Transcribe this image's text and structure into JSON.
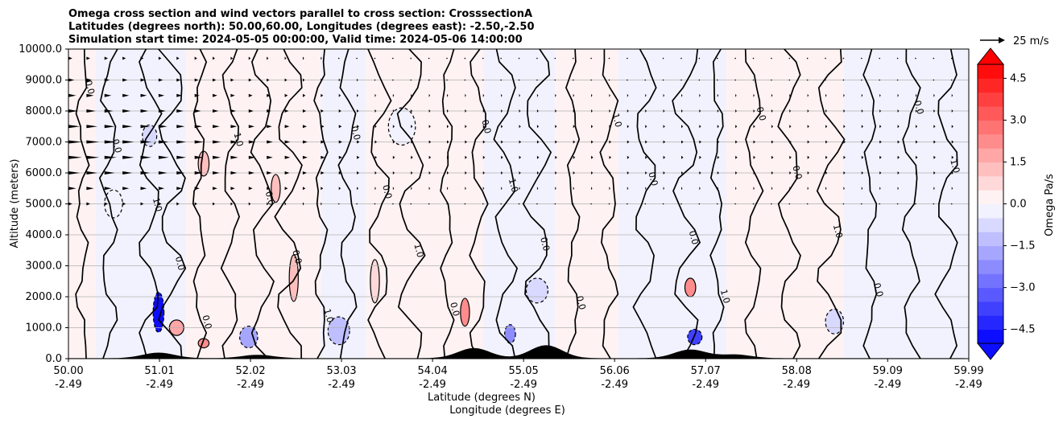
{
  "chart_data": {
    "type": "contour",
    "title_lines": [
      "Omega cross section and wind vectors parallel to cross section: CrosssectionA",
      "Latitudes (degrees north): 50.00,60.00, Longitudes (degrees east): -2.50,-2.50",
      "Simulation start time: 2024-05-05 00:00:00, Valid time: 2024-05-06 14:00:00"
    ],
    "ylabel": "Altitude (meters)",
    "xlabel_lat": "Latitude (degrees N)",
    "xlabel_lon": "Longitude (degrees E)",
    "ylim": [
      0,
      10000
    ],
    "y_ticks": [
      "0.0",
      "1000.0",
      "2000.0",
      "3000.0",
      "4000.0",
      "5000.0",
      "6000.0",
      "7000.0",
      "8000.0",
      "9000.0",
      "10000.0"
    ],
    "y_tick_values": [
      0,
      1000,
      2000,
      3000,
      4000,
      5000,
      6000,
      7000,
      8000,
      9000,
      10000
    ],
    "xlim": [
      50.0,
      59.99
    ],
    "x_ticks": [
      {
        "lat": "50.00",
        "lon": "-2.49",
        "value": 50.0
      },
      {
        "lat": "51.01",
        "lon": "-2.49",
        "value": 51.01
      },
      {
        "lat": "52.02",
        "lon": "-2.49",
        "value": 52.02
      },
      {
        "lat": "53.03",
        "lon": "-2.49",
        "value": 53.03
      },
      {
        "lat": "54.04",
        "lon": "-2.49",
        "value": 54.04
      },
      {
        "lat": "55.05",
        "lon": "-2.49",
        "value": 55.05
      },
      {
        "lat": "56.06",
        "lon": "-2.49",
        "value": 56.06
      },
      {
        "lat": "57.07",
        "lon": "-2.49",
        "value": 57.07
      },
      {
        "lat": "58.08",
        "lon": "-2.49",
        "value": 58.08
      },
      {
        "lat": "59.09",
        "lon": "-2.49",
        "value": 59.09
      },
      {
        "lat": "59.99",
        "lon": "-2.49",
        "value": 59.99
      }
    ],
    "grid": true,
    "colorbar": {
      "label": "Omega Pa/s",
      "range": [
        -5.0,
        5.0
      ],
      "ticks": [
        "4.5",
        "3.0",
        "1.5",
        "0.0",
        "−1.5",
        "−3.0",
        "−4.5"
      ],
      "tick_values": [
        4.5,
        3.0,
        1.5,
        0.0,
        -1.5,
        -3.0,
        -4.5
      ],
      "colormap": "bwr"
    },
    "quiver_key": "25 m/s",
    "contour_labels": [
      "0.0",
      "1.0",
      "-1.0"
    ],
    "terrain_peaks": [
      {
        "lat": 51.0,
        "height": 180
      },
      {
        "lat": 52.1,
        "height": 110
      },
      {
        "lat": 54.5,
        "height": 330
      },
      {
        "lat": 55.3,
        "height": 420
      },
      {
        "lat": 56.9,
        "height": 280
      },
      {
        "lat": 57.4,
        "height": 120
      }
    ],
    "omega_cells": [
      {
        "lat": 51.0,
        "alt": 1500,
        "val": -5.0,
        "w": 0.06,
        "h": 1300
      },
      {
        "lat": 51.2,
        "alt": 1000,
        "val": 1.8,
        "w": 0.08,
        "h": 500
      },
      {
        "lat": 51.5,
        "alt": 500,
        "val": 2.2,
        "w": 0.06,
        "h": 300
      },
      {
        "lat": 52.0,
        "alt": 700,
        "val": -1.6,
        "w": 0.1,
        "h": 700
      },
      {
        "lat": 52.5,
        "alt": 2600,
        "val": 1.0,
        "w": 0.05,
        "h": 1500
      },
      {
        "lat": 53.0,
        "alt": 900,
        "val": -1.3,
        "w": 0.12,
        "h": 900
      },
      {
        "lat": 53.4,
        "alt": 2500,
        "val": 0.7,
        "w": 0.05,
        "h": 1400
      },
      {
        "lat": 54.4,
        "alt": 1500,
        "val": 2.0,
        "w": 0.05,
        "h": 900
      },
      {
        "lat": 54.9,
        "alt": 800,
        "val": -2.5,
        "w": 0.06,
        "h": 600
      },
      {
        "lat": 55.2,
        "alt": 2200,
        "val": -0.9,
        "w": 0.12,
        "h": 800
      },
      {
        "lat": 56.9,
        "alt": 2300,
        "val": 2.4,
        "w": 0.06,
        "h": 600
      },
      {
        "lat": 56.95,
        "alt": 700,
        "val": -3.6,
        "w": 0.08,
        "h": 500
      },
      {
        "lat": 51.5,
        "alt": 6300,
        "val": 1.0,
        "w": 0.06,
        "h": 800
      },
      {
        "lat": 52.3,
        "alt": 5500,
        "val": 1.3,
        "w": 0.05,
        "h": 900
      },
      {
        "lat": 50.5,
        "alt": 5000,
        "val": -0.5,
        "w": 0.1,
        "h": 900
      },
      {
        "lat": 50.9,
        "alt": 7200,
        "val": -0.8,
        "w": 0.08,
        "h": 700
      },
      {
        "lat": 53.7,
        "alt": 7500,
        "val": -0.4,
        "w": 0.15,
        "h": 1200
      },
      {
        "lat": 58.5,
        "alt": 1200,
        "val": -0.6,
        "w": 0.1,
        "h": 800
      }
    ],
    "background_bands": [
      {
        "from": 50.0,
        "to": 50.3,
        "val": 0.3
      },
      {
        "from": 50.3,
        "to": 50.6,
        "val": -0.3
      },
      {
        "from": 50.6,
        "to": 51.3,
        "val": -0.4
      },
      {
        "from": 51.3,
        "to": 52.8,
        "val": 0.25
      },
      {
        "from": 52.8,
        "to": 53.3,
        "val": -0.3
      },
      {
        "from": 53.3,
        "to": 54.6,
        "val": 0.2
      },
      {
        "from": 54.6,
        "to": 55.4,
        "val": -0.25
      },
      {
        "from": 55.4,
        "to": 56.1,
        "val": 0.2
      },
      {
        "from": 56.1,
        "to": 57.3,
        "val": -0.2
      },
      {
        "from": 57.3,
        "to": 58.6,
        "val": 0.15
      },
      {
        "from": 58.6,
        "to": 59.99,
        "val": -0.2
      }
    ],
    "contour_lines_lat": [
      50.15,
      50.45,
      50.9,
      51.15,
      51.45,
      51.8,
      52.15,
      52.45,
      52.8,
      53.1,
      53.45,
      53.8,
      54.2,
      54.55,
      54.85,
      55.2,
      55.6,
      56.0,
      56.4,
      56.85,
      57.2,
      57.6,
      58.0,
      58.45,
      58.9,
      59.35,
      59.75
    ],
    "wind_rows": [
      {
        "alt": 9700,
        "speed": 4
      },
      {
        "alt": 9000,
        "speed": 6
      },
      {
        "alt": 8500,
        "speed": 8
      },
      {
        "alt": 8000,
        "speed": 10
      },
      {
        "alt": 7500,
        "speed": 12
      },
      {
        "alt": 7000,
        "speed": 14
      },
      {
        "alt": 6500,
        "speed": 14
      },
      {
        "alt": 6000,
        "speed": 12
      },
      {
        "alt": 5500,
        "speed": 8
      },
      {
        "alt": 5000,
        "speed": 4
      }
    ]
  }
}
